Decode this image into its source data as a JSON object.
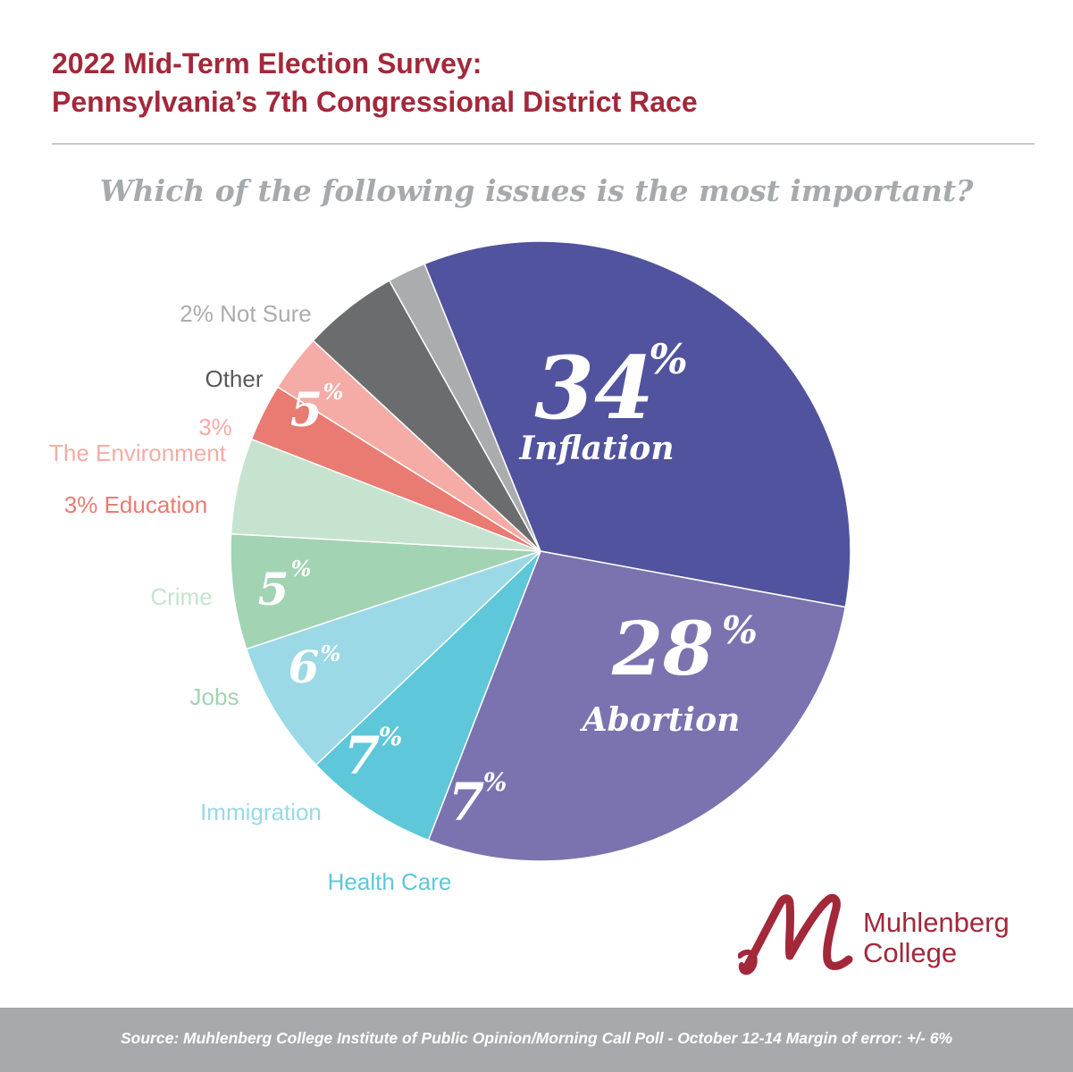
{
  "header": {
    "title_line1": "2022 Mid-Term Election Survey:",
    "title_line2": "Pennsylvania’s 7th Congressional District Race"
  },
  "chart_data": {
    "type": "pie",
    "title": "Which of the following issues is the most important?",
    "slices": [
      {
        "label": "Inflation",
        "value": 34,
        "color": "#51539e"
      },
      {
        "label": "Abortion",
        "value": 28,
        "color": "#7b72b0"
      },
      {
        "label": "Health Care",
        "value": 7,
        "color": "#5ec7da"
      },
      {
        "label": "Immigration",
        "value": 7,
        "color": "#9ad9e5"
      },
      {
        "label": "Jobs",
        "value": 6,
        "color": "#a2d3b3"
      },
      {
        "label": "Crime",
        "value": 5,
        "color": "#c6e3cf"
      },
      {
        "label": "Education",
        "value": 3,
        "color": "#e97b72"
      },
      {
        "label": "The Environment",
        "value": 3,
        "color": "#f5aca6"
      },
      {
        "label": "Other",
        "value": 5,
        "color": "#6b6c6e"
      },
      {
        "label": "Not Sure",
        "value": 2,
        "color": "#abacae"
      }
    ]
  },
  "labels": {
    "inflation_pct": "34",
    "inflation_name": "Inflation",
    "abortion_pct": "28",
    "abortion_name": "Abortion",
    "healthcare_pct": "7",
    "healthcare_name": "Health Care",
    "immigration_pct": "7",
    "immigration_name": "Immigration",
    "jobs_pct": "6",
    "jobs_name": "Jobs",
    "crime_pct": "5",
    "crime_name": "Crime",
    "education_text": "3% Education",
    "environment_pct": "3%",
    "environment_name": "The Environment",
    "other_pct": "5",
    "other_name": "Other",
    "notsure_text": "2% Not Sure",
    "percent_sign": "%"
  },
  "logo": {
    "line1": "Muhlenberg",
    "line2": "College",
    "color": "#a3283a"
  },
  "footer": {
    "source": "Source: Muhlenberg College Institute of Public Opinion/Morning Call Poll - October 12-14 Margin of error: +/- 6%"
  }
}
